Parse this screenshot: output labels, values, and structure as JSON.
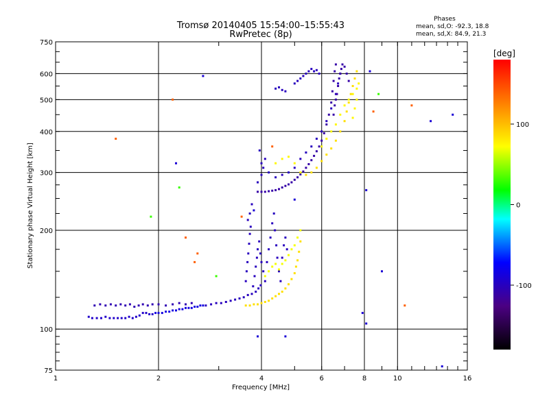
{
  "header": {
    "title": "Tromsø 20140405 15:54:00–15:55:43",
    "subtitle": "RwPretec (8p)",
    "stats_title": "Phases",
    "stats_o": "mean, sd,O: -92.3, 18.8",
    "stats_x": "mean, sd,X: 84.9, 21.3"
  },
  "chart_data": {
    "type": "scatter",
    "title": "Tromsø 20140405 15:54:00–15:55:43",
    "subtitle": "RwPretec (8p)",
    "xlabel": "Frequency [MHz]",
    "ylabel": "Stationary phase Virtual Height [km]",
    "x_scale": "log",
    "y_scale": "log",
    "xlim": [
      1,
      16
    ],
    "ylim": [
      75,
      750
    ],
    "x_ticks": [
      1,
      2,
      4,
      6,
      8,
      10,
      16
    ],
    "y_ticks": [
      75,
      100,
      200,
      300,
      400,
      500,
      600,
      750
    ],
    "grid": true,
    "colorbar": {
      "label": "[deg]",
      "range": [
        -180,
        180
      ],
      "ticks": [
        100,
        0,
        -100
      ]
    },
    "traces": [
      {
        "mode": "O",
        "phase": -95,
        "points": [
          [
            1.25,
            109
          ],
          [
            1.28,
            108
          ],
          [
            1.32,
            108
          ],
          [
            1.36,
            108
          ],
          [
            1.4,
            109
          ],
          [
            1.44,
            108
          ],
          [
            1.48,
            108
          ],
          [
            1.52,
            108
          ],
          [
            1.56,
            108
          ],
          [
            1.6,
            108
          ],
          [
            1.64,
            109
          ],
          [
            1.68,
            108
          ],
          [
            1.72,
            109
          ],
          [
            1.76,
            110
          ],
          [
            1.8,
            112
          ],
          [
            1.84,
            112
          ],
          [
            1.88,
            111
          ],
          [
            1.92,
            111
          ]
        ]
      },
      {
        "mode": "O",
        "phase": -105,
        "points": [
          [
            1.3,
            118
          ],
          [
            1.35,
            119
          ],
          [
            1.4,
            118
          ],
          [
            1.45,
            119
          ],
          [
            1.5,
            118
          ],
          [
            1.55,
            119
          ],
          [
            1.6,
            118
          ],
          [
            1.65,
            119
          ],
          [
            1.7,
            117
          ],
          [
            1.75,
            118
          ],
          [
            1.8,
            119
          ],
          [
            1.86,
            118
          ],
          [
            1.92,
            119
          ],
          [
            2.0,
            119
          ],
          [
            2.1,
            118
          ],
          [
            2.2,
            119
          ],
          [
            2.3,
            120
          ],
          [
            2.4,
            119
          ],
          [
            2.5,
            120
          ]
        ]
      },
      {
        "mode": "O",
        "phase": -85,
        "points": [
          [
            1.96,
            112
          ],
          [
            2.0,
            112
          ],
          [
            2.05,
            112
          ],
          [
            2.1,
            113
          ],
          [
            2.15,
            113
          ],
          [
            2.2,
            114
          ],
          [
            2.25,
            114
          ],
          [
            2.3,
            115
          ],
          [
            2.35,
            115
          ],
          [
            2.4,
            116
          ],
          [
            2.45,
            116
          ],
          [
            2.5,
            116
          ],
          [
            2.55,
            117
          ],
          [
            2.6,
            117
          ],
          [
            2.65,
            118
          ],
          [
            2.7,
            118
          ]
        ]
      },
      {
        "mode": "O",
        "phase": -100,
        "points": [
          [
            2.75,
            118
          ],
          [
            2.85,
            119
          ],
          [
            2.95,
            120
          ],
          [
            3.05,
            120
          ],
          [
            3.15,
            121
          ],
          [
            3.25,
            122
          ],
          [
            3.35,
            123
          ],
          [
            3.45,
            124
          ],
          [
            3.55,
            125
          ],
          [
            3.65,
            127
          ],
          [
            3.75,
            128
          ],
          [
            3.85,
            130
          ],
          [
            3.92,
            133
          ],
          [
            3.98,
            136
          ]
        ]
      },
      {
        "mode": "O",
        "phase": -100,
        "points": [
          [
            3.6,
            140
          ],
          [
            3.62,
            150
          ],
          [
            3.64,
            160
          ],
          [
            3.66,
            170
          ],
          [
            3.68,
            182
          ],
          [
            3.7,
            195
          ],
          [
            3.72,
            205
          ],
          [
            3.65,
            215
          ],
          [
            3.7,
            225
          ],
          [
            3.75,
            240
          ],
          [
            3.78,
            135
          ],
          [
            3.82,
            145
          ],
          [
            3.85,
            155
          ],
          [
            3.88,
            165
          ],
          [
            3.9,
            175
          ],
          [
            3.94,
            185
          ],
          [
            3.97,
            170
          ],
          [
            4.0,
            160
          ],
          [
            4.05,
            150
          ],
          [
            4.1,
            140
          ],
          [
            4.15,
            160
          ],
          [
            4.2,
            175
          ],
          [
            4.25,
            190
          ],
          [
            4.3,
            210
          ],
          [
            4.35,
            225
          ],
          [
            4.38,
            200
          ],
          [
            4.42,
            180
          ],
          [
            4.45,
            165
          ],
          [
            4.5,
            150
          ],
          [
            4.55,
            140
          ],
          [
            4.6,
            165
          ],
          [
            4.65,
            180
          ],
          [
            4.7,
            190
          ],
          [
            4.75,
            175
          ]
        ]
      },
      {
        "mode": "X",
        "phase": 85,
        "points": [
          [
            3.6,
            118
          ],
          [
            3.7,
            118
          ],
          [
            3.8,
            119
          ],
          [
            3.9,
            119
          ],
          [
            4.0,
            120
          ],
          [
            4.1,
            121
          ],
          [
            4.2,
            122
          ],
          [
            4.3,
            124
          ],
          [
            4.4,
            126
          ],
          [
            4.5,
            128
          ],
          [
            4.6,
            130
          ],
          [
            4.7,
            133
          ],
          [
            4.8,
            137
          ],
          [
            4.9,
            142
          ],
          [
            5.0,
            148
          ],
          [
            5.05,
            155
          ],
          [
            5.1,
            162
          ],
          [
            5.15,
            172
          ],
          [
            5.2,
            185
          ]
        ]
      },
      {
        "mode": "X",
        "phase": 70,
        "points": [
          [
            4.1,
            145
          ],
          [
            4.2,
            150
          ],
          [
            4.3,
            155
          ],
          [
            4.4,
            158
          ],
          [
            4.5,
            152
          ],
          [
            4.6,
            158
          ],
          [
            4.7,
            162
          ],
          [
            4.8,
            168
          ],
          [
            4.9,
            175
          ],
          [
            5.0,
            180
          ],
          [
            5.1,
            190
          ],
          [
            5.2,
            200
          ]
        ]
      },
      {
        "mode": "O",
        "phase": -110,
        "points": [
          [
            3.9,
            262
          ],
          [
            4.0,
            262
          ],
          [
            4.1,
            262
          ],
          [
            4.2,
            263
          ],
          [
            4.3,
            264
          ],
          [
            4.4,
            265
          ],
          [
            4.5,
            267
          ],
          [
            4.6,
            270
          ],
          [
            4.7,
            273
          ],
          [
            4.8,
            276
          ],
          [
            4.9,
            280
          ],
          [
            5.0,
            285
          ],
          [
            5.1,
            290
          ],
          [
            5.2,
            296
          ],
          [
            5.3,
            302
          ],
          [
            5.4,
            310
          ],
          [
            5.5,
            318
          ],
          [
            5.6,
            327
          ],
          [
            5.7,
            337
          ],
          [
            5.8,
            348
          ],
          [
            5.9,
            360
          ],
          [
            6.0,
            375
          ],
          [
            6.1,
            395
          ],
          [
            6.2,
            420
          ],
          [
            6.3,
            450
          ],
          [
            6.4,
            490
          ],
          [
            6.45,
            530
          ],
          [
            6.5,
            570
          ],
          [
            6.55,
            610
          ],
          [
            6.6,
            640
          ]
        ]
      },
      {
        "mode": "O",
        "phase": -100,
        "points": [
          [
            3.9,
            280
          ],
          [
            4.0,
            295
          ],
          [
            4.05,
            310
          ],
          [
            4.1,
            330
          ],
          [
            3.95,
            350
          ],
          [
            4.0,
            320
          ],
          [
            4.2,
            300
          ],
          [
            4.4,
            290
          ],
          [
            4.6,
            295
          ],
          [
            4.8,
            300
          ],
          [
            5.0,
            310
          ],
          [
            5.2,
            330
          ],
          [
            5.4,
            345
          ],
          [
            5.6,
            360
          ],
          [
            5.8,
            380
          ],
          [
            6.0,
            400
          ],
          [
            6.2,
            430
          ],
          [
            6.4,
            470
          ],
          [
            6.6,
            520
          ],
          [
            6.7,
            560
          ],
          [
            6.8,
            600
          ],
          [
            6.9,
            640
          ]
        ]
      },
      {
        "mode": "O",
        "phase": -100,
        "points": [
          [
            4.4,
            540
          ],
          [
            4.5,
            545
          ],
          [
            4.6,
            535
          ],
          [
            4.7,
            530
          ],
          [
            5.0,
            560
          ],
          [
            5.1,
            570
          ],
          [
            5.2,
            580
          ],
          [
            5.3,
            590
          ],
          [
            5.4,
            600
          ],
          [
            5.5,
            610
          ],
          [
            5.6,
            620
          ],
          [
            5.7,
            610
          ],
          [
            5.8,
            615
          ],
          [
            5.9,
            600
          ]
        ]
      },
      {
        "mode": "X",
        "phase": 85,
        "points": [
          [
            5.4,
            295
          ],
          [
            5.6,
            300
          ],
          [
            5.8,
            310
          ],
          [
            6.0,
            325
          ],
          [
            6.2,
            340
          ],
          [
            6.4,
            355
          ],
          [
            6.6,
            375
          ],
          [
            6.8,
            400
          ],
          [
            7.0,
            430
          ],
          [
            7.1,
            460
          ],
          [
            7.2,
            490
          ],
          [
            7.3,
            520
          ],
          [
            7.4,
            550
          ],
          [
            7.5,
            580
          ],
          [
            7.6,
            610
          ]
        ]
      },
      {
        "mode": "X",
        "phase": 75,
        "points": [
          [
            4.4,
            320
          ],
          [
            4.6,
            330
          ],
          [
            4.8,
            335
          ],
          [
            5.0,
            320
          ],
          [
            5.2,
            300
          ],
          [
            6.0,
            360
          ],
          [
            6.2,
            380
          ],
          [
            6.4,
            400
          ],
          [
            6.6,
            420
          ],
          [
            6.8,
            450
          ],
          [
            7.0,
            480
          ],
          [
            7.2,
            500
          ],
          [
            7.4,
            520
          ],
          [
            7.6,
            540
          ],
          [
            7.7,
            560
          ],
          [
            7.6,
            500
          ],
          [
            7.5,
            470
          ],
          [
            7.4,
            440
          ]
        ]
      },
      {
        "mode": "O",
        "phase": -110,
        "points": [
          [
            6.5,
            450
          ],
          [
            6.55,
            480
          ],
          [
            6.6,
            500
          ],
          [
            6.65,
            520
          ],
          [
            6.7,
            550
          ],
          [
            6.75,
            580
          ],
          [
            6.8,
            600
          ],
          [
            6.85,
            620
          ],
          [
            6.9,
            640
          ],
          [
            7.0,
            630
          ],
          [
            7.1,
            600
          ],
          [
            7.2,
            570
          ]
        ]
      },
      {
        "mode": "other",
        "phase": -90,
        "points": [
          [
            2.25,
            320
          ],
          [
            2.7,
            590
          ],
          [
            3.9,
            95
          ],
          [
            4.7,
            95
          ],
          [
            7.9,
            112
          ],
          [
            8.1,
            104
          ],
          [
            8.3,
            610
          ],
          [
            9.0,
            150
          ],
          [
            12.5,
            430
          ],
          [
            13.5,
            77
          ],
          [
            14.5,
            450
          ],
          [
            8.1,
            265
          ],
          [
            5.0,
            248
          ],
          [
            3.8,
            230
          ]
        ]
      },
      {
        "mode": "other",
        "phase": 140,
        "points": [
          [
            1.5,
            380
          ],
          [
            2.2,
            500
          ],
          [
            2.4,
            190
          ],
          [
            2.55,
            160
          ],
          [
            2.6,
            170
          ],
          [
            3.5,
            220
          ],
          [
            4.3,
            360
          ],
          [
            8.5,
            460
          ],
          [
            10.5,
            118
          ],
          [
            11.0,
            480
          ]
        ]
      },
      {
        "mode": "other",
        "phase": 30,
        "points": [
          [
            2.3,
            270
          ],
          [
            2.95,
            145
          ],
          [
            1.9,
            220
          ],
          [
            8.8,
            520
          ]
        ]
      }
    ]
  }
}
